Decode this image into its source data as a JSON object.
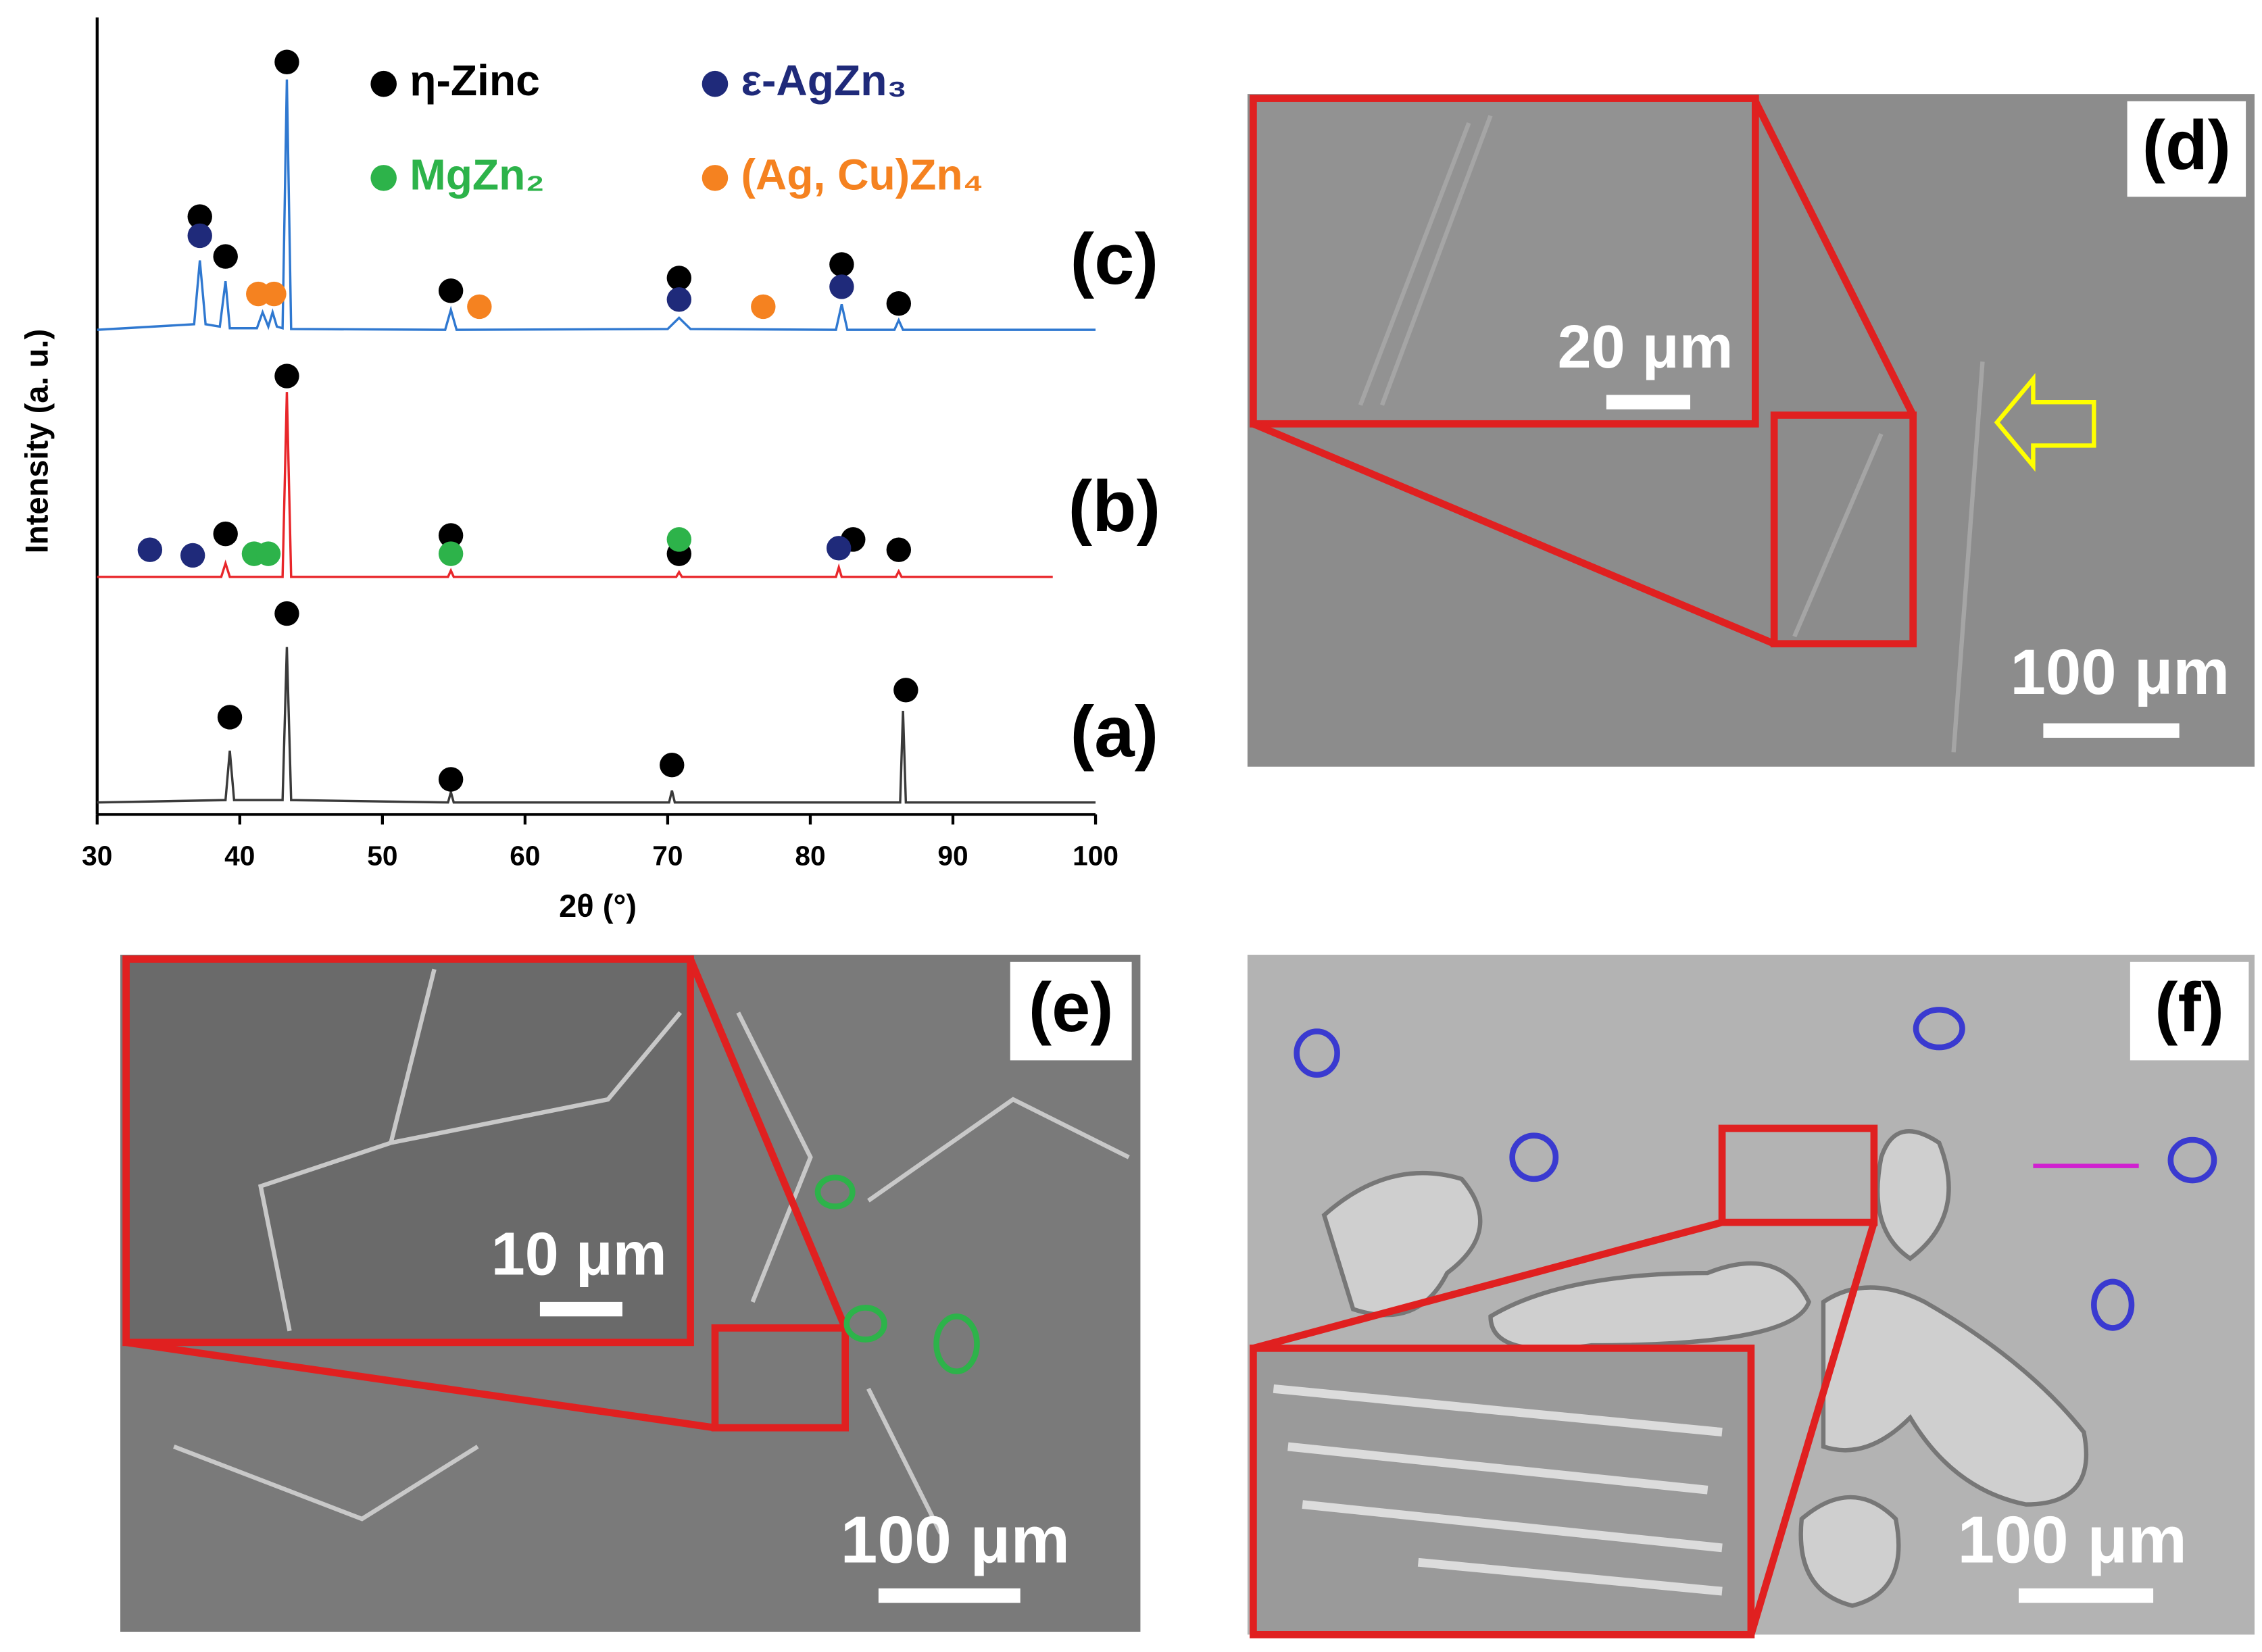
{
  "chart_data": {
    "type": "line",
    "xlabel": "2θ (°)",
    "ylabel": "Intensity (a. u.)",
    "xlim": [
      30,
      100
    ],
    "xticks": [
      30,
      40,
      50,
      60,
      70,
      80,
      90,
      100
    ],
    "ylim": [
      0,
      100
    ],
    "series": [
      {
        "name": "(c)",
        "color": "#2f78d0",
        "x": [
          30,
          36.8,
          37.2,
          37.6,
          38.6,
          39.0,
          39.3,
          41.2,
          41.6,
          42.0,
          42.3,
          42.6,
          43.0,
          43.3,
          43.6,
          54.4,
          54.8,
          55.2,
          70.0,
          70.8,
          71.6,
          81.8,
          82.2,
          82.6,
          85.9,
          86.2,
          86.5,
          100
        ],
        "values": [
          60.8,
          61.5,
          69.5,
          61.5,
          61.2,
          66.9,
          61.0,
          61.0,
          63.0,
          61.2,
          63.0,
          61.2,
          61.0,
          92.2,
          60.9,
          60.8,
          63.3,
          60.8,
          60.9,
          62.3,
          60.9,
          60.8,
          64.0,
          60.8,
          60.8,
          62.0,
          60.8,
          60.8
        ]
      },
      {
        "name": "(b)",
        "color": "#e8262a",
        "x": [
          30,
          38.7,
          39.0,
          39.3,
          43.0,
          43.3,
          43.6,
          54.6,
          54.8,
          55.0,
          70.6,
          70.8,
          71.0,
          81.8,
          82.0,
          82.2,
          86.0,
          86.2,
          86.4,
          97
        ],
        "values": [
          29.8,
          29.8,
          31.5,
          29.8,
          29.8,
          53.0,
          29.8,
          29.8,
          30.6,
          29.8,
          29.8,
          30.4,
          29.8,
          29.8,
          31.0,
          29.8,
          29.8,
          30.5,
          29.8,
          29.8
        ]
      },
      {
        "name": "(a)",
        "color": "#3a3a3a",
        "x": [
          30,
          39.0,
          39.3,
          39.6,
          43.0,
          43.3,
          43.6,
          54.6,
          54.8,
          55.0,
          70.1,
          70.3,
          70.5,
          86.3,
          86.5,
          86.7,
          100
        ],
        "values": [
          1.5,
          1.8,
          8.0,
          1.8,
          1.8,
          21.0,
          1.8,
          1.5,
          2.8,
          1.5,
          1.5,
          3.0,
          1.5,
          1.5,
          13.0,
          1.5,
          1.5
        ]
      }
    ],
    "phases": [
      {
        "name": "η-Zinc",
        "color": "#000000",
        "x": [
          39.3,
          43.3,
          54.8,
          70.3,
          86.7,
          39.0,
          43.3,
          54.8,
          70.8,
          83.0,
          86.2,
          37.2,
          39.0,
          43.3,
          54.8,
          70.8,
          82.2,
          86.2
        ],
        "y": [
          12.2,
          25.2,
          4.4,
          6.2,
          15.6,
          35.2,
          55.0,
          35.0,
          32.7,
          34.5,
          33.2,
          75.0,
          70.0,
          94.4,
          65.7,
          67.3,
          69.0,
          64.1
        ]
      },
      {
        "name": "ε-AgZn₃",
        "color": "#1f2a7a",
        "x": [
          33.7,
          36.7,
          82.0,
          37.2,
          70.8,
          82.2
        ],
        "y": [
          33.2,
          32.5,
          33.4,
          72.6,
          64.6,
          66.2
        ]
      },
      {
        "name": "MgZn₂",
        "color": "#2db34a",
        "x": [
          41.0,
          42.0,
          54.8,
          70.8
        ],
        "y": [
          32.7,
          32.7,
          32.7,
          34.5
        ]
      },
      {
        "name": "(Ag, Cu)Zn₄",
        "color": "#f58220",
        "x": [
          41.3,
          42.4,
          56.8,
          76.7
        ],
        "y": [
          65.3,
          65.3,
          63.7,
          63.7
        ]
      }
    ]
  },
  "micrographs": [
    {
      "label": "(d)",
      "scale_bar": "100 μm",
      "inset_scale_bar": "20 μm"
    },
    {
      "label": "(e)",
      "scale_bar": "100 μm",
      "inset_scale_bar": "10 μm"
    },
    {
      "label": "(f)",
      "scale_bar": "100 μm"
    }
  ]
}
